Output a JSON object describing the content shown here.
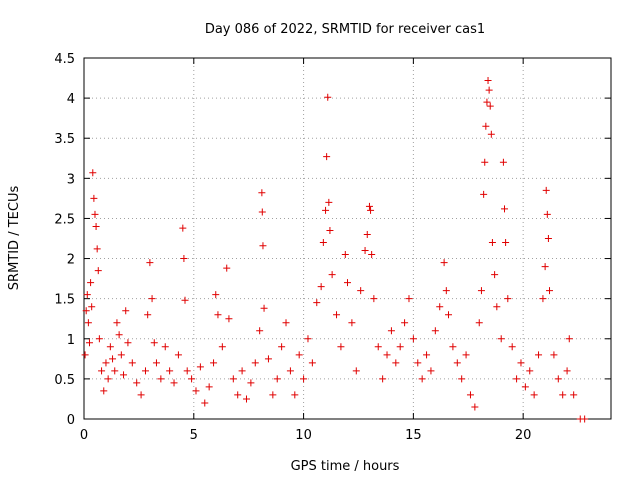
{
  "chart_data": {
    "type": "scatter",
    "title": "Day 086 of 2022, SRMTID for receiver cas1",
    "xlabel": "GPS time / hours",
    "ylabel": "SRMTID / TECUs",
    "xlim": [
      0,
      24
    ],
    "ylim": [
      0,
      4.5
    ],
    "xticks": [
      0,
      5,
      10,
      15,
      20
    ],
    "yticks": [
      0,
      0.5,
      1,
      1.5,
      2,
      2.5,
      3,
      3.5,
      4,
      4.5
    ],
    "grid": true,
    "marker": "+",
    "marker_color": "#e00000",
    "series": [
      {
        "name": "SRMTID",
        "points": [
          [
            0.05,
            0.8
          ],
          [
            0.1,
            1.35
          ],
          [
            0.15,
            1.55
          ],
          [
            0.2,
            1.2
          ],
          [
            0.25,
            0.95
          ],
          [
            0.3,
            1.7
          ],
          [
            0.35,
            1.4
          ],
          [
            0.4,
            3.07
          ],
          [
            0.45,
            2.75
          ],
          [
            0.5,
            2.55
          ],
          [
            0.55,
            2.4
          ],
          [
            0.6,
            2.12
          ],
          [
            0.65,
            1.85
          ],
          [
            0.7,
            1.0
          ],
          [
            0.8,
            0.6
          ],
          [
            0.9,
            0.35
          ],
          [
            1.0,
            0.7
          ],
          [
            1.1,
            0.5
          ],
          [
            1.2,
            0.9
          ],
          [
            1.3,
            0.75
          ],
          [
            1.4,
            0.6
          ],
          [
            1.5,
            1.2
          ],
          [
            1.6,
            1.05
          ],
          [
            1.7,
            0.8
          ],
          [
            1.8,
            0.55
          ],
          [
            1.9,
            1.35
          ],
          [
            2.0,
            0.95
          ],
          [
            2.2,
            0.7
          ],
          [
            2.4,
            0.45
          ],
          [
            2.6,
            0.3
          ],
          [
            2.8,
            0.6
          ],
          [
            2.9,
            1.3
          ],
          [
            3.0,
            1.95
          ],
          [
            3.1,
            1.5
          ],
          [
            3.2,
            0.95
          ],
          [
            3.3,
            0.7
          ],
          [
            3.5,
            0.5
          ],
          [
            3.7,
            0.9
          ],
          [
            3.9,
            0.6
          ],
          [
            4.1,
            0.45
          ],
          [
            4.3,
            0.8
          ],
          [
            4.5,
            2.38
          ],
          [
            4.55,
            2.0
          ],
          [
            4.6,
            1.48
          ],
          [
            4.7,
            0.6
          ],
          [
            4.9,
            0.5
          ],
          [
            5.1,
            0.35
          ],
          [
            5.3,
            0.65
          ],
          [
            5.5,
            0.2
          ],
          [
            5.7,
            0.4
          ],
          [
            5.9,
            0.7
          ],
          [
            6.0,
            1.55
          ],
          [
            6.1,
            1.3
          ],
          [
            6.3,
            0.9
          ],
          [
            6.5,
            1.88
          ],
          [
            6.6,
            1.25
          ],
          [
            6.8,
            0.5
          ],
          [
            7.0,
            0.3
          ],
          [
            7.2,
            0.6
          ],
          [
            7.4,
            0.25
          ],
          [
            7.6,
            0.45
          ],
          [
            7.8,
            0.7
          ],
          [
            8.0,
            1.1
          ],
          [
            8.1,
            2.82
          ],
          [
            8.12,
            2.58
          ],
          [
            8.15,
            2.16
          ],
          [
            8.2,
            1.38
          ],
          [
            8.4,
            0.75
          ],
          [
            8.6,
            0.3
          ],
          [
            8.8,
            0.5
          ],
          [
            9.0,
            0.9
          ],
          [
            9.2,
            1.2
          ],
          [
            9.4,
            0.6
          ],
          [
            9.6,
            0.3
          ],
          [
            9.8,
            0.8
          ],
          [
            10.0,
            0.5
          ],
          [
            10.2,
            1.0
          ],
          [
            10.4,
            0.7
          ],
          [
            10.6,
            1.45
          ],
          [
            10.8,
            1.65
          ],
          [
            10.9,
            2.2
          ],
          [
            11.0,
            2.6
          ],
          [
            11.05,
            3.27
          ],
          [
            11.1,
            4.01
          ],
          [
            11.15,
            2.7
          ],
          [
            11.2,
            2.35
          ],
          [
            11.3,
            1.8
          ],
          [
            11.5,
            1.3
          ],
          [
            11.7,
            0.9
          ],
          [
            11.9,
            2.05
          ],
          [
            12.0,
            1.7
          ],
          [
            12.2,
            1.2
          ],
          [
            12.4,
            0.6
          ],
          [
            12.6,
            1.6
          ],
          [
            12.8,
            2.1
          ],
          [
            12.9,
            2.3
          ],
          [
            13.0,
            2.65
          ],
          [
            13.05,
            2.6
          ],
          [
            13.1,
            2.05
          ],
          [
            13.2,
            1.5
          ],
          [
            13.4,
            0.9
          ],
          [
            13.6,
            0.5
          ],
          [
            13.8,
            0.8
          ],
          [
            14.0,
            1.1
          ],
          [
            14.2,
            0.7
          ],
          [
            14.4,
            0.9
          ],
          [
            14.6,
            1.2
          ],
          [
            14.8,
            1.5
          ],
          [
            15.0,
            1.0
          ],
          [
            15.2,
            0.7
          ],
          [
            15.4,
            0.5
          ],
          [
            15.6,
            0.8
          ],
          [
            15.8,
            0.6
          ],
          [
            16.0,
            1.1
          ],
          [
            16.2,
            1.4
          ],
          [
            16.4,
            1.95
          ],
          [
            16.5,
            1.6
          ],
          [
            16.6,
            1.3
          ],
          [
            16.8,
            0.9
          ],
          [
            17.0,
            0.7
          ],
          [
            17.2,
            0.5
          ],
          [
            17.4,
            0.8
          ],
          [
            17.6,
            0.3
          ],
          [
            17.8,
            0.15
          ],
          [
            18.0,
            1.2
          ],
          [
            18.1,
            1.6
          ],
          [
            18.2,
            2.8
          ],
          [
            18.25,
            3.2
          ],
          [
            18.3,
            3.65
          ],
          [
            18.35,
            3.95
          ],
          [
            18.4,
            4.22
          ],
          [
            18.45,
            4.1
          ],
          [
            18.5,
            3.9
          ],
          [
            18.55,
            3.55
          ],
          [
            18.6,
            2.2
          ],
          [
            18.7,
            1.8
          ],
          [
            18.8,
            1.4
          ],
          [
            19.0,
            1.0
          ],
          [
            19.1,
            3.2
          ],
          [
            19.15,
            2.62
          ],
          [
            19.2,
            2.2
          ],
          [
            19.3,
            1.5
          ],
          [
            19.5,
            0.9
          ],
          [
            19.7,
            0.5
          ],
          [
            19.9,
            0.7
          ],
          [
            20.1,
            0.4
          ],
          [
            20.3,
            0.6
          ],
          [
            20.5,
            0.3
          ],
          [
            20.7,
            0.8
          ],
          [
            20.9,
            1.5
          ],
          [
            21.0,
            1.9
          ],
          [
            21.05,
            2.85
          ],
          [
            21.1,
            2.55
          ],
          [
            21.15,
            2.25
          ],
          [
            21.2,
            1.6
          ],
          [
            21.4,
            0.8
          ],
          [
            21.6,
            0.5
          ],
          [
            21.8,
            0.3
          ],
          [
            22.0,
            0.6
          ],
          [
            22.1,
            1.0
          ],
          [
            22.3,
            0.3
          ],
          [
            22.6,
            0.0
          ],
          [
            22.8,
            0.0
          ]
        ]
      }
    ]
  }
}
